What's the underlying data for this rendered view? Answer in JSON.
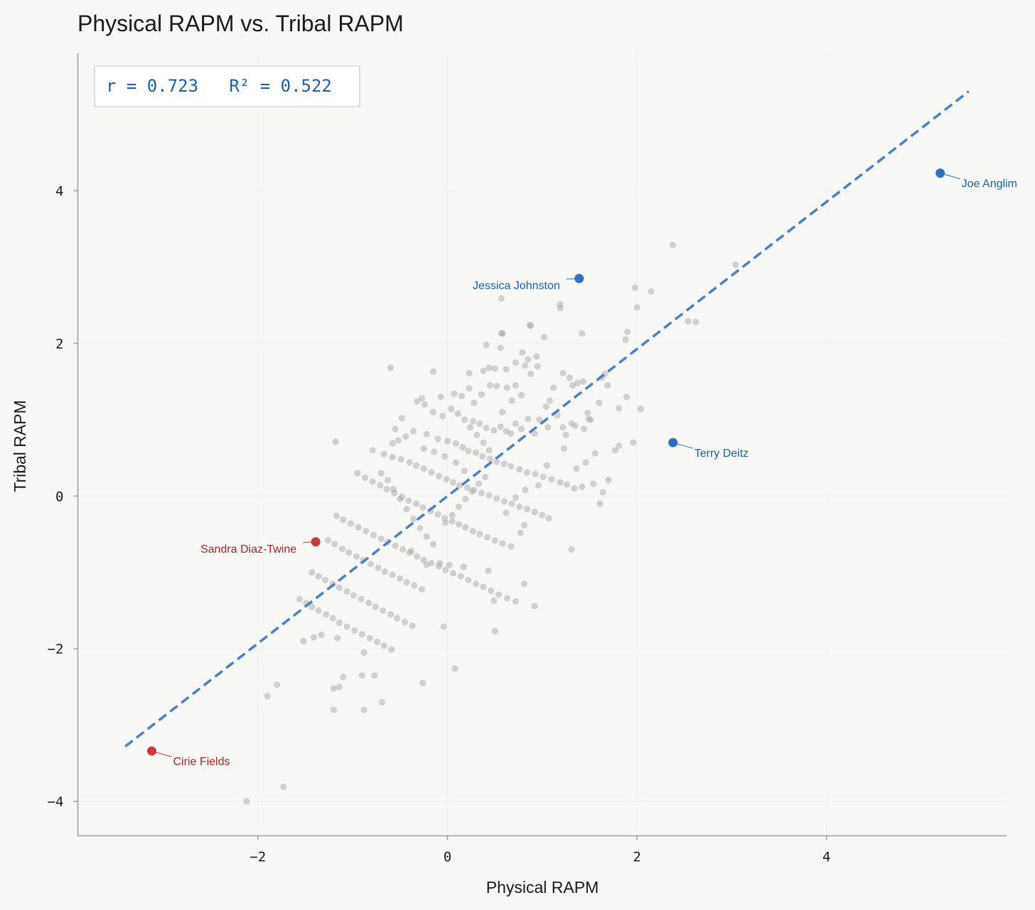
{
  "chart_data": {
    "type": "scatter",
    "title": "Physical RAPM vs. Tribal RAPM",
    "xlabel": "Physical RAPM",
    "ylabel": "Tribal RAPM",
    "xlim": [
      -3.9,
      5.9
    ],
    "ylim": [
      -4.45,
      5.8
    ],
    "xticks": [
      -2,
      0,
      2,
      4
    ],
    "yticks": [
      -4,
      -2,
      0,
      2,
      4
    ],
    "xtick_labels": [
      "−2",
      "0",
      "2",
      "4"
    ],
    "ytick_labels": [
      "−4",
      "−2",
      "0",
      "2",
      "4"
    ],
    "grid": true,
    "stats_text": "r = 0.723   R² = 0.522",
    "stats_position": "top-left",
    "point_color": "#9a9a9a",
    "fit_line": {
      "x": [
        -3.4,
        5.5
      ],
      "y": [
        -3.28,
        5.3
      ],
      "color": "#4a7fc1",
      "style": "dashed"
    },
    "highlights": [
      {
        "name": "Joe Anglim",
        "x": 5.2,
        "y": 4.23,
        "color": "#2f6fbf",
        "text_color": "#1f5fa8",
        "label_side": "right"
      },
      {
        "name": "Jessica Johnston",
        "x": 1.39,
        "y": 2.85,
        "color": "#2f6fbf",
        "text_color": "#1f5fa8",
        "label_side": "left"
      },
      {
        "name": "Terry Deitz",
        "x": 2.38,
        "y": 0.7,
        "color": "#2f6fbf",
        "text_color": "#1f5fa8",
        "label_side": "right"
      },
      {
        "name": "Sandra Diaz-Twine",
        "x": -1.39,
        "y": -0.6,
        "color": "#c43c3c",
        "text_color": "#b22222",
        "label_side": "left"
      },
      {
        "name": "Cirie Fields",
        "x": -3.12,
        "y": -3.34,
        "color": "#c43c3c",
        "text_color": "#b22222",
        "label_side": "right"
      }
    ],
    "points": [
      [
        2.38,
        3.29
      ],
      [
        3.04,
        3.03
      ],
      [
        2.15,
        2.68
      ],
      [
        1.98,
        2.73
      ],
      [
        2.0,
        2.47
      ],
      [
        2.54,
        2.29
      ],
      [
        2.62,
        2.28
      ],
      [
        1.9,
        2.15
      ],
      [
        1.88,
        2.05
      ],
      [
        0.57,
        2.59
      ],
      [
        1.19,
        2.51
      ],
      [
        1.19,
        2.46
      ],
      [
        1.42,
        2.13
      ],
      [
        0.87,
        2.24
      ],
      [
        0.88,
        2.23
      ],
      [
        0.57,
        2.13
      ],
      [
        0.58,
        2.13
      ],
      [
        1.02,
        2.08
      ],
      [
        0.41,
        1.98
      ],
      [
        0.56,
        1.94
      ],
      [
        0.79,
        1.88
      ],
      [
        0.94,
        1.83
      ],
      [
        0.85,
        1.79
      ],
      [
        0.72,
        1.75
      ],
      [
        0.82,
        1.71
      ],
      [
        0.62,
        1.66
      ],
      [
        0.5,
        1.67
      ],
      [
        0.44,
        1.68
      ],
      [
        0.38,
        1.64
      ],
      [
        -0.15,
        1.63
      ],
      [
        -0.6,
        1.68
      ],
      [
        0.23,
        1.61
      ],
      [
        1.22,
        1.61
      ],
      [
        1.29,
        1.55
      ],
      [
        1.43,
        1.5
      ],
      [
        1.37,
        1.48
      ],
      [
        1.32,
        1.45
      ],
      [
        1.66,
        1.6
      ],
      [
        1.63,
        1.55
      ],
      [
        1.69,
        1.45
      ],
      [
        1.89,
        1.3
      ],
      [
        1.6,
        1.22
      ],
      [
        2.04,
        1.14
      ],
      [
        1.81,
        1.15
      ],
      [
        1.48,
        1.09
      ],
      [
        1.51,
        1.0
      ],
      [
        1.49,
        1.01
      ],
      [
        1.44,
        0.88
      ],
      [
        1.35,
        0.92
      ],
      [
        1.31,
        0.95
      ],
      [
        1.22,
        0.9
      ],
      [
        1.25,
        0.8
      ],
      [
        1.06,
        0.9
      ],
      [
        1.04,
        1.17
      ],
      [
        0.97,
        1.0
      ],
      [
        1.12,
        1.42
      ],
      [
        0.72,
        1.45
      ],
      [
        0.63,
        1.42
      ],
      [
        0.52,
        1.44
      ],
      [
        0.45,
        1.45
      ],
      [
        0.23,
        1.41
      ],
      [
        0.15,
        1.31
      ],
      [
        0.07,
        1.34
      ],
      [
        -0.07,
        1.3
      ],
      [
        -0.27,
        1.28
      ],
      [
        -0.24,
        1.2
      ],
      [
        -0.32,
        1.24
      ],
      [
        -0.15,
        1.1
      ],
      [
        -0.05,
        1.05
      ],
      [
        0.04,
        1.14
      ],
      [
        0.11,
        1.08
      ],
      [
        0.18,
        1.0
      ],
      [
        0.27,
        0.98
      ],
      [
        0.34,
        0.95
      ],
      [
        0.41,
        0.89
      ],
      [
        0.49,
        0.86
      ],
      [
        0.56,
        0.91
      ],
      [
        0.62,
        0.85
      ],
      [
        0.67,
        0.82
      ],
      [
        0.72,
        0.95
      ],
      [
        0.78,
        0.88
      ],
      [
        0.85,
        1.01
      ],
      [
        0.92,
        0.82
      ],
      [
        -0.36,
        0.85
      ],
      [
        -0.44,
        0.78
      ],
      [
        -0.52,
        0.73
      ],
      [
        -0.58,
        0.69
      ],
      [
        -0.22,
        0.81
      ],
      [
        -0.1,
        0.75
      ],
      [
        0.0,
        0.72
      ],
      [
        0.09,
        0.69
      ],
      [
        0.16,
        0.64
      ],
      [
        0.22,
        0.59
      ],
      [
        0.3,
        0.57
      ],
      [
        0.37,
        0.52
      ],
      [
        0.45,
        0.49
      ],
      [
        0.52,
        0.45
      ],
      [
        0.6,
        0.42
      ],
      [
        0.67,
        0.39
      ],
      [
        0.76,
        0.35
      ],
      [
        0.84,
        0.31
      ],
      [
        0.93,
        0.29
      ],
      [
        1.01,
        0.25
      ],
      [
        1.1,
        0.22
      ],
      [
        1.19,
        0.18
      ],
      [
        1.26,
        0.15
      ],
      [
        1.34,
        0.1
      ],
      [
        1.42,
        0.12
      ],
      [
        1.54,
        0.16
      ],
      [
        1.64,
        0.05
      ],
      [
        1.61,
        -0.1
      ],
      [
        1.7,
        0.21
      ],
      [
        1.77,
        0.6
      ],
      [
        1.81,
        0.66
      ],
      [
        1.96,
        0.7
      ],
      [
        -1.18,
        0.71
      ],
      [
        -0.79,
        0.6
      ],
      [
        -0.67,
        0.55
      ],
      [
        -0.58,
        0.51
      ],
      [
        -0.49,
        0.48
      ],
      [
        -0.4,
        0.44
      ],
      [
        -0.33,
        0.4
      ],
      [
        -0.25,
        0.36
      ],
      [
        -0.17,
        0.31
      ],
      [
        -0.09,
        0.26
      ],
      [
        -0.01,
        0.22
      ],
      [
        0.06,
        0.18
      ],
      [
        0.13,
        0.14
      ],
      [
        0.21,
        0.11
      ],
      [
        0.28,
        0.08
      ],
      [
        0.36,
        0.04
      ],
      [
        0.44,
        0.01
      ],
      [
        0.52,
        -0.03
      ],
      [
        0.6,
        -0.07
      ],
      [
        0.68,
        -0.1
      ],
      [
        0.76,
        -0.14
      ],
      [
        0.84,
        -0.17
      ],
      [
        0.92,
        -0.21
      ],
      [
        1.0,
        -0.25
      ],
      [
        1.07,
        -0.29
      ],
      [
        -0.95,
        0.3
      ],
      [
        -0.87,
        0.24
      ],
      [
        -0.79,
        0.19
      ],
      [
        -0.71,
        0.14
      ],
      [
        -0.64,
        0.09
      ],
      [
        -0.56,
        0.04
      ],
      [
        -0.48,
        -0.01
      ],
      [
        -0.41,
        -0.06
      ],
      [
        -0.33,
        -0.1
      ],
      [
        -0.26,
        -0.15
      ],
      [
        -0.18,
        -0.2
      ],
      [
        -0.1,
        -0.24
      ],
      [
        -0.03,
        -0.29
      ],
      [
        0.05,
        -0.33
      ],
      [
        0.12,
        -0.37
      ],
      [
        0.19,
        -0.41
      ],
      [
        0.27,
        -0.46
      ],
      [
        0.34,
        -0.5
      ],
      [
        0.42,
        -0.54
      ],
      [
        0.5,
        -0.58
      ],
      [
        0.58,
        -0.62
      ],
      [
        0.67,
        -0.66
      ],
      [
        0.77,
        -0.48
      ],
      [
        0.81,
        -0.38
      ],
      [
        -1.17,
        -0.26
      ],
      [
        -1.1,
        -0.31
      ],
      [
        -1.02,
        -0.36
      ],
      [
        -0.94,
        -0.41
      ],
      [
        -0.86,
        -0.46
      ],
      [
        -0.78,
        -0.51
      ],
      [
        -0.7,
        -0.56
      ],
      [
        -0.63,
        -0.6
      ],
      [
        -0.55,
        -0.65
      ],
      [
        -0.47,
        -0.7
      ],
      [
        -0.4,
        -0.74
      ],
      [
        -0.32,
        -0.79
      ],
      [
        -0.25,
        -0.84
      ],
      [
        -0.17,
        -0.88
      ],
      [
        -0.09,
        -0.92
      ],
      [
        -0.02,
        -0.97
      ],
      [
        0.06,
        -1.01
      ],
      [
        0.14,
        -1.05
      ],
      [
        0.22,
        -1.1
      ],
      [
        0.3,
        -1.15
      ],
      [
        0.38,
        -1.19
      ],
      [
        0.46,
        -1.24
      ],
      [
        0.54,
        -1.29
      ],
      [
        0.63,
        -1.34
      ],
      [
        0.72,
        -1.38
      ],
      [
        0.81,
        -1.15
      ],
      [
        0.92,
        -1.44
      ],
      [
        1.31,
        -0.7
      ],
      [
        -1.26,
        -0.58
      ],
      [
        -1.19,
        -0.63
      ],
      [
        -1.11,
        -0.69
      ],
      [
        -1.04,
        -0.74
      ],
      [
        -0.96,
        -0.79
      ],
      [
        -0.89,
        -0.84
      ],
      [
        -0.81,
        -0.89
      ],
      [
        -0.73,
        -0.94
      ],
      [
        -0.66,
        -0.99
      ],
      [
        -0.58,
        -1.03
      ],
      [
        -0.5,
        -1.08
      ],
      [
        -0.43,
        -1.13
      ],
      [
        -0.35,
        -1.17
      ],
      [
        -0.27,
        -1.22
      ],
      [
        -1.43,
        -1.0
      ],
      [
        -1.36,
        -1.05
      ],
      [
        -1.29,
        -1.1
      ],
      [
        -1.21,
        -1.15
      ],
      [
        -1.14,
        -1.2
      ],
      [
        -1.06,
        -1.25
      ],
      [
        -0.99,
        -1.3
      ],
      [
        -0.91,
        -1.35
      ],
      [
        -0.83,
        -1.4
      ],
      [
        -0.76,
        -1.45
      ],
      [
        -0.68,
        -1.5
      ],
      [
        -0.6,
        -1.55
      ],
      [
        -0.53,
        -1.6
      ],
      [
        -0.45,
        -1.65
      ],
      [
        -0.37,
        -1.7
      ],
      [
        -1.56,
        -1.35
      ],
      [
        -1.49,
        -1.4
      ],
      [
        -1.43,
        -1.45
      ],
      [
        -1.36,
        -1.5
      ],
      [
        -1.28,
        -1.55
      ],
      [
        -1.21,
        -1.6
      ],
      [
        -1.14,
        -1.66
      ],
      [
        -1.06,
        -1.71
      ],
      [
        -0.98,
        -1.76
      ],
      [
        -0.9,
        -1.81
      ],
      [
        -0.82,
        -1.86
      ],
      [
        -0.74,
        -1.91
      ],
      [
        -0.67,
        -1.96
      ],
      [
        -0.59,
        -2.01
      ],
      [
        -1.52,
        -1.9
      ],
      [
        -1.41,
        -1.85
      ],
      [
        -1.33,
        -1.82
      ],
      [
        -1.16,
        -1.86
      ],
      [
        -0.88,
        -2.05
      ],
      [
        -0.9,
        -2.35
      ],
      [
        -0.77,
        -2.35
      ],
      [
        -1.1,
        -2.37
      ],
      [
        -1.2,
        -2.52
      ],
      [
        -1.14,
        -2.5
      ],
      [
        -0.88,
        -2.8
      ],
      [
        -0.69,
        -2.7
      ],
      [
        -1.2,
        -2.8
      ],
      [
        -1.8,
        -2.47
      ],
      [
        -1.9,
        -2.62
      ],
      [
        -0.26,
        -2.45
      ],
      [
        0.08,
        -2.26
      ],
      [
        -0.04,
        -1.71
      ],
      [
        0.5,
        -1.77
      ],
      [
        0.49,
        -1.37
      ],
      [
        0.43,
        -0.98
      ],
      [
        0.17,
        -0.93
      ],
      [
        0.02,
        -0.9
      ],
      [
        -0.08,
        -0.88
      ],
      [
        -0.22,
        -0.9
      ],
      [
        -0.38,
        -0.72
      ],
      [
        -1.73,
        -3.81
      ],
      [
        -2.12,
        -4.0
      ],
      [
        -0.7,
        0.3
      ],
      [
        -0.63,
        0.21
      ],
      [
        -0.57,
        0.09
      ],
      [
        -0.5,
        -0.04
      ],
      [
        -0.43,
        -0.17
      ],
      [
        -0.36,
        -0.3
      ],
      [
        -0.29,
        -0.42
      ],
      [
        -0.22,
        -0.53
      ],
      [
        -0.15,
        -0.63
      ],
      [
        0.4,
        0.25
      ],
      [
        0.33,
        0.16
      ],
      [
        0.26,
        0.06
      ],
      [
        0.19,
        -0.04
      ],
      [
        0.12,
        -0.14
      ],
      [
        0.05,
        -0.25
      ],
      [
        -0.02,
        -0.35
      ],
      [
        0.44,
        0.6
      ],
      [
        0.38,
        0.7
      ],
      [
        0.31,
        0.8
      ],
      [
        0.24,
        0.9
      ],
      [
        0.58,
        1.1
      ],
      [
        0.68,
        1.25
      ],
      [
        0.78,
        1.32
      ],
      [
        0.88,
        1.6
      ],
      [
        0.95,
        1.7
      ],
      [
        1.08,
        1.25
      ],
      [
        1.16,
        1.06
      ],
      [
        0.28,
        1.22
      ],
      [
        0.36,
        1.33
      ],
      [
        -0.48,
        1.02
      ],
      [
        -0.55,
        0.88
      ],
      [
        1.36,
        0.36
      ],
      [
        1.46,
        0.44
      ],
      [
        1.56,
        0.56
      ],
      [
        1.23,
        0.62
      ],
      [
        0.18,
        0.33
      ],
      [
        0.09,
        0.44
      ],
      [
        -0.03,
        0.52
      ],
      [
        -0.14,
        0.58
      ],
      [
        -0.25,
        0.62
      ],
      [
        0.62,
        -0.22
      ],
      [
        0.72,
        -0.02
      ],
      [
        0.82,
        0.08
      ],
      [
        0.96,
        0.14
      ],
      [
        1.05,
        0.4
      ]
    ]
  }
}
